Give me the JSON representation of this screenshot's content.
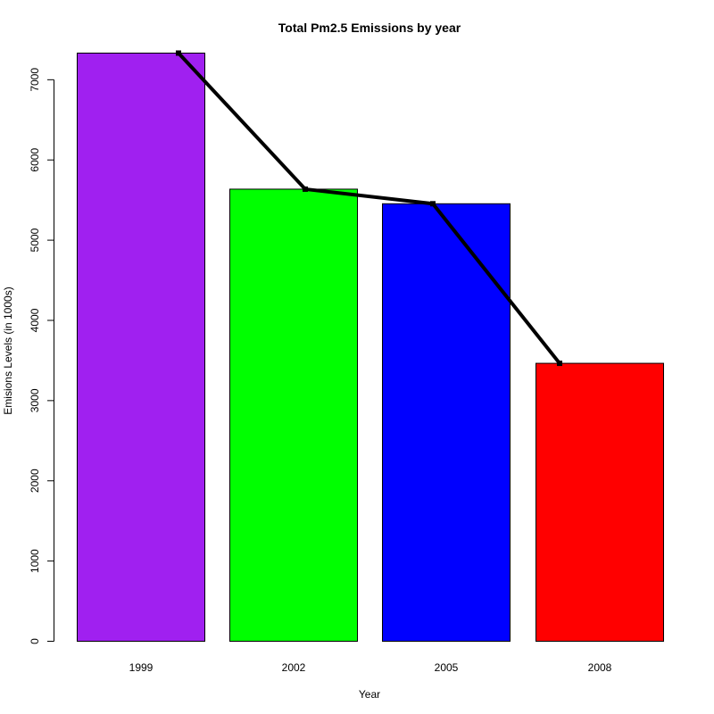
{
  "chart_data": {
    "type": "bar",
    "title": "Total Pm2.5 Emissions by year",
    "xlabel": "Year",
    "ylabel": "Emisions Levels (in 1000s)",
    "categories": [
      "1999",
      "2002",
      "2005",
      "2008"
    ],
    "values": [
      7332,
      5636,
      5454,
      3465
    ],
    "colors": [
      "#A020F0",
      "#00FF00",
      "#0000FF",
      "#FF0000"
    ],
    "ylim": [
      0,
      7332
    ],
    "yticks": [
      0,
      1000,
      2000,
      3000,
      4000,
      5000,
      6000,
      7000
    ],
    "overlay_line": {
      "type": "line",
      "color": "#000000",
      "values": [
        7332,
        5636,
        5454,
        3465
      ]
    },
    "grid": false,
    "legend": "none"
  }
}
